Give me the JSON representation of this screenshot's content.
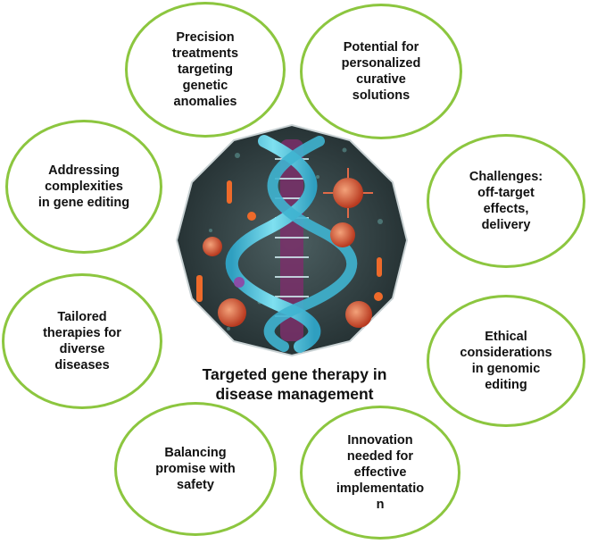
{
  "center": {
    "caption": "Targeted gene therapy in\ndisease management",
    "image": "dna-helix-with-virus-particles-illustration"
  },
  "colors": {
    "bubble_border": "#8cc63f",
    "text": "#111111",
    "center_background": "#2e3d3f",
    "helix": "#4fc3d8",
    "virus": "#d9553a"
  },
  "bubbles": [
    {
      "id": "precision",
      "text": "Precision\ntreatments\ntargeting\ngenetic\nanomalies"
    },
    {
      "id": "potential",
      "text": "Potential for\npersonalized\ncurative\nsolutions"
    },
    {
      "id": "challenges",
      "text": "Challenges:\noff-target\neffects,\ndelivery"
    },
    {
      "id": "ethical",
      "text": "Ethical\nconsiderations\nin genomic\nediting"
    },
    {
      "id": "innovation",
      "text": "Innovation\nneeded for\neffective\nimplementatio\nn"
    },
    {
      "id": "balancing",
      "text": "Balancing\npromise with\nsafety"
    },
    {
      "id": "tailored",
      "text": "Tailored\ntherapies for\ndiverse\ndiseases"
    },
    {
      "id": "addressing",
      "text": "Addressing\ncomplexities\nin gene editing"
    }
  ]
}
